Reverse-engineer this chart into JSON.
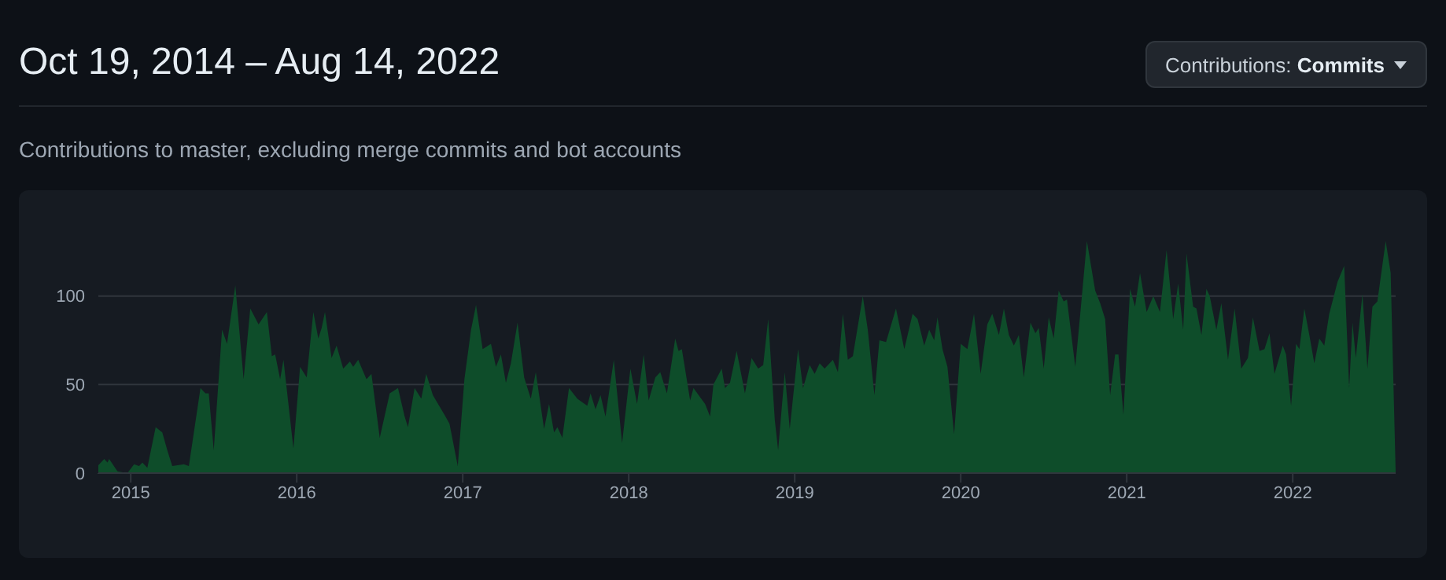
{
  "chart_data": {
    "type": "area",
    "title": "Oct 19, 2014 – Aug 14, 2022",
    "subtitle": "Contributions to master, excluding merge commits and bot accounts",
    "annotations": [
      "Contributions: Commits"
    ],
    "color": "#0e4d2a",
    "grid": "y",
    "xlim": [
      2014.8,
      2022.62
    ],
    "xticks": [
      2015,
      2016,
      2017,
      2018,
      2019,
      2020,
      2021,
      2022
    ],
    "ylim": [
      0,
      134
    ],
    "yticks": [
      0,
      50,
      100
    ],
    "x": [
      2014.8,
      2014.84,
      2014.86,
      2014.87,
      2014.92,
      2014.98,
      2015.02,
      2015.05,
      2015.07,
      2015.1,
      2015.15,
      2015.19,
      2015.22,
      2015.25,
      2015.32,
      2015.35,
      2015.42,
      2015.45,
      2015.47,
      2015.5,
      2015.55,
      2015.58,
      2015.63,
      2015.68,
      2015.72,
      2015.77,
      2015.82,
      2015.85,
      2015.87,
      2015.9,
      2015.92,
      2015.98,
      2016.02,
      2016.06,
      2016.1,
      2016.13,
      2016.15,
      2016.17,
      2016.21,
      2016.24,
      2016.28,
      2016.32,
      2016.34,
      2016.37,
      2016.42,
      2016.45,
      2016.5,
      2016.56,
      2016.61,
      2016.65,
      2016.67,
      2016.71,
      2016.75,
      2016.78,
      2016.82,
      2016.89,
      2016.92,
      2016.97,
      2017.01,
      2017.05,
      2017.08,
      2017.12,
      2017.17,
      2017.2,
      2017.23,
      2017.26,
      2017.29,
      2017.33,
      2017.37,
      2017.41,
      2017.44,
      2017.49,
      2017.52,
      2017.55,
      2017.57,
      2017.6,
      2017.64,
      2017.69,
      2017.75,
      2017.77,
      2017.8,
      2017.83,
      2017.86,
      2017.91,
      2017.96,
      2018.01,
      2018.05,
      2018.09,
      2018.12,
      2018.16,
      2018.19,
      2018.23,
      2018.28,
      2018.3,
      2018.32,
      2018.37,
      2018.39,
      2018.46,
      2018.49,
      2018.51,
      2018.56,
      2018.58,
      2018.61,
      2018.65,
      2018.7,
      2018.74,
      2018.78,
      2018.81,
      2018.84,
      2018.88,
      2018.9,
      2018.94,
      2018.97,
      2019.02,
      2019.05,
      2019.09,
      2019.12,
      2019.15,
      2019.18,
      2019.23,
      2019.26,
      2019.29,
      2019.32,
      2019.35,
      2019.41,
      2019.44,
      2019.48,
      2019.51,
      2019.55,
      2019.61,
      2019.66,
      2019.71,
      2019.74,
      2019.78,
      2019.81,
      2019.84,
      2019.86,
      2019.89,
      2019.92,
      2019.96,
      2020.0,
      2020.04,
      2020.08,
      2020.12,
      2020.16,
      2020.19,
      2020.23,
      2020.26,
      2020.29,
      2020.32,
      2020.35,
      2020.38,
      2020.42,
      2020.45,
      2020.47,
      2020.5,
      2020.53,
      2020.56,
      2020.59,
      2020.62,
      2020.64,
      2020.69,
      2020.72,
      2020.76,
      2020.81,
      2020.84,
      2020.87,
      2020.9,
      2020.93,
      2020.95,
      2020.98,
      2021.02,
      2021.05,
      2021.08,
      2021.12,
      2021.16,
      2021.2,
      2021.24,
      2021.28,
      2021.31,
      2021.34,
      2021.36,
      2021.4,
      2021.42,
      2021.45,
      2021.48,
      2021.5,
      2021.54,
      2021.57,
      2021.61,
      2021.65,
      2021.69,
      2021.73,
      2021.76,
      2021.8,
      2021.83,
      2021.86,
      2021.89,
      2021.94,
      2021.96,
      2021.99,
      2022.02,
      2022.04,
      2022.07,
      2022.1,
      2022.13,
      2022.16,
      2022.19,
      2022.22,
      2022.27,
      2022.31,
      2022.34,
      2022.36,
      2022.38,
      2022.42,
      2022.45,
      2022.48,
      2022.51,
      2022.56,
      2022.59,
      2022.62
    ],
    "values": [
      4,
      8,
      6,
      8,
      1,
      0,
      5,
      4,
      6,
      3,
      26,
      23,
      13,
      4,
      5,
      4,
      48,
      45,
      45,
      13,
      81,
      73,
      106,
      53,
      93,
      84,
      91,
      66,
      67,
      53,
      64,
      14,
      60,
      54,
      91,
      76,
      82,
      91,
      65,
      72,
      59,
      63,
      60,
      64,
      53,
      56,
      20,
      45,
      48,
      32,
      26,
      48,
      42,
      56,
      44,
      33,
      28,
      4,
      53,
      81,
      95,
      70,
      73,
      60,
      67,
      51,
      62,
      85,
      54,
      42,
      57,
      25,
      39,
      23,
      26,
      20,
      48,
      42,
      38,
      45,
      36,
      44,
      32,
      64,
      17,
      59,
      39,
      67,
      41,
      54,
      57,
      45,
      76,
      69,
      70,
      41,
      48,
      39,
      32,
      50,
      59,
      48,
      51,
      69,
      45,
      65,
      59,
      61,
      87,
      30,
      13,
      57,
      25,
      70,
      48,
      61,
      56,
      62,
      59,
      64,
      57,
      90,
      64,
      66,
      100,
      81,
      44,
      75,
      74,
      93,
      70,
      90,
      87,
      72,
      81,
      75,
      88,
      70,
      60,
      22,
      73,
      70,
      90,
      56,
      84,
      90,
      78,
      93,
      78,
      72,
      78,
      54,
      85,
      79,
      82,
      59,
      88,
      76,
      103,
      97,
      98,
      60,
      90,
      131,
      103,
      96,
      87,
      44,
      67,
      67,
      33,
      104,
      94,
      113,
      91,
      100,
      91,
      126,
      87,
      107,
      81,
      124,
      94,
      93,
      78,
      104,
      100,
      81,
      96,
      64,
      93,
      59,
      65,
      88,
      69,
      70,
      79,
      56,
      72,
      67,
      38,
      73,
      70,
      93,
      78,
      62,
      76,
      72,
      90,
      108,
      117,
      48,
      85,
      65,
      101,
      59,
      94,
      97,
      131,
      113,
      1
    ]
  }
}
